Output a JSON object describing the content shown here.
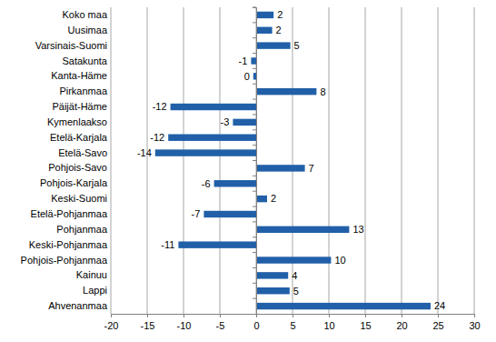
{
  "chart_data": {
    "type": "bar",
    "orientation": "horizontal",
    "categories": [
      "Koko maa",
      "Uusimaa",
      "Varsinais-Suomi",
      "Satakunta",
      "Kanta-Häme",
      "Pirkanmaa",
      "Päijät-Häme",
      "Kymenlaakso",
      "Etelä-Karjala",
      "Etelä-Savo",
      "Pohjois-Savo",
      "Pohjois-Karjala",
      "Keski-Suomi",
      "Etelä-Pohjanmaa",
      "Pohjanmaa",
      "Keski-Pohjanmaa",
      "Pohjois-Pohjanmaa",
      "Kainuu",
      "Lappi",
      "Ahvenanmaa"
    ],
    "values": [
      2.4,
      2.2,
      4.7,
      -0.7,
      -0.4,
      8.3,
      -11.8,
      -3.2,
      -12.1,
      -13.9,
      6.7,
      -5.8,
      1.5,
      -7.2,
      12.8,
      -10.7,
      10.3,
      4.4,
      4.6,
      24.0
    ],
    "value_labels": [
      "2",
      "2",
      "5",
      "-1",
      "0",
      "8",
      "-12",
      "-3",
      "-12",
      "-14",
      "7",
      "-6",
      "2",
      "-7",
      "13",
      "-11",
      "10",
      "4",
      "5",
      "24"
    ],
    "color": "#2160a8",
    "xlim": [
      -20,
      30
    ],
    "xticks": [
      -20,
      -15,
      -10,
      -5,
      0,
      5,
      10,
      15,
      20,
      25,
      30
    ],
    "grid": true,
    "data_labels": true
  }
}
